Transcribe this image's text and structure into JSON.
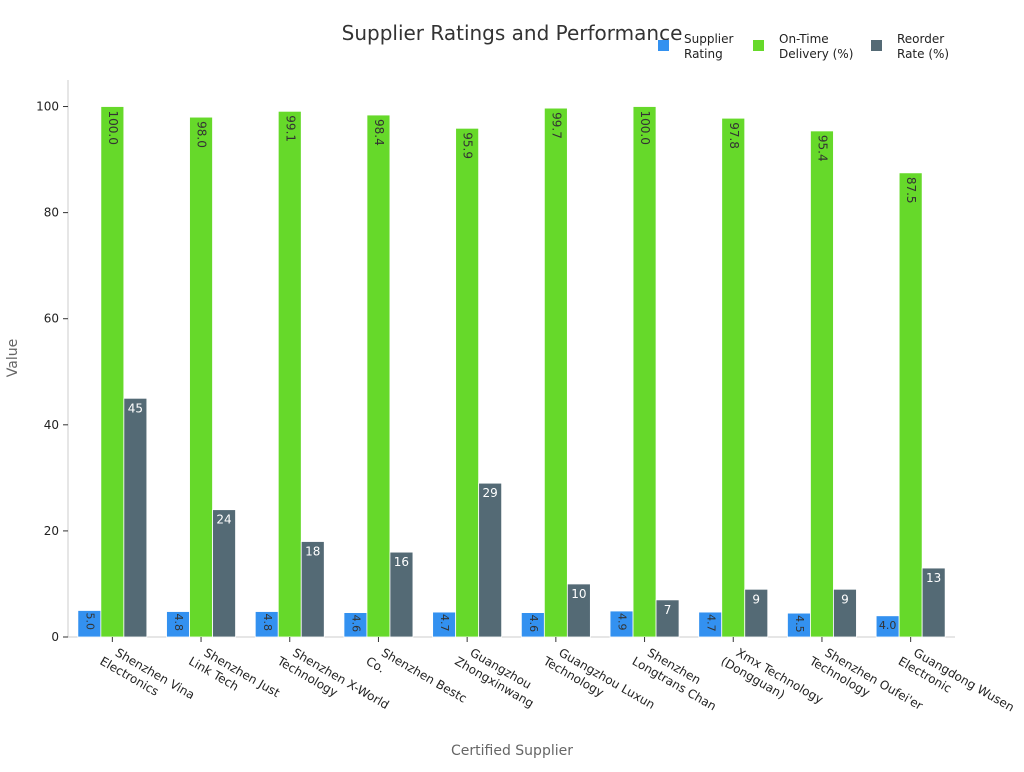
{
  "chart_data": {
    "type": "bar",
    "title": "Supplier Ratings and Performance",
    "xlabel": "Certified Supplier",
    "ylabel": "Value",
    "ylim": [
      0,
      105
    ],
    "yticks": [
      0,
      20,
      40,
      60,
      80,
      100
    ],
    "grid": false,
    "legend_position": "top-right",
    "categories": [
      [
        "Shenzhen Vina",
        "Electronics"
      ],
      [
        "Shenzhen Just",
        "Link Tech"
      ],
      [
        "Shenzhen X-World",
        "Technology"
      ],
      [
        "Shenzhen Bestc",
        "Co."
      ],
      [
        "Guangzhou",
        "Zhongxinwang"
      ],
      [
        "Guangzhou Luxun",
        "Technology"
      ],
      [
        "Shenzhen",
        "Longtrans Chan"
      ],
      [
        "Xmx Technology",
        "(Dongguan)"
      ],
      [
        "Shenzhen Oufei'er",
        "Technology"
      ],
      [
        "Guangdong Wusen",
        "Electronic"
      ]
    ],
    "series": [
      {
        "name": [
          "Supplier",
          "Rating"
        ],
        "color": "#3391f0",
        "values": [
          5.0,
          4.8,
          4.8,
          4.6,
          4.7,
          4.6,
          4.9,
          4.7,
          4.5,
          4.0
        ],
        "labels": [
          "5.0",
          "4.8",
          "4.8",
          "4.6",
          "4.7",
          "4.6",
          "4.9",
          "4.7",
          "4.5",
          "4.0"
        ]
      },
      {
        "name": [
          "On-Time",
          "Delivery (%)"
        ],
        "color": "#66d92a",
        "values": [
          100.0,
          98.0,
          99.1,
          98.4,
          95.9,
          99.7,
          100.0,
          97.8,
          95.4,
          87.5
        ],
        "labels": [
          "100.0",
          "98.0",
          "99.1",
          "98.4",
          "95.9",
          "99.7",
          "100.0",
          "97.8",
          "95.4",
          "87.5"
        ]
      },
      {
        "name": [
          "Reorder",
          "Rate (%)"
        ],
        "color": "#546a75",
        "values": [
          45,
          24,
          18,
          16,
          29,
          10,
          7,
          9,
          9,
          13
        ],
        "labels": [
          "45",
          "24",
          "18",
          "16",
          "29",
          "10",
          "7",
          "9",
          "9",
          "13"
        ]
      }
    ]
  }
}
